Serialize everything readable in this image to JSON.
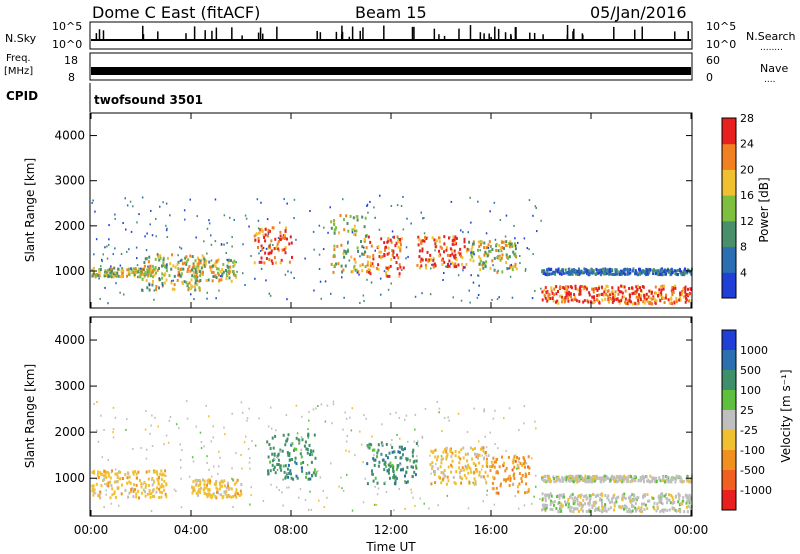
{
  "header": {
    "radar_title": "Dome C East (fitACF)",
    "beam": "Beam 15",
    "date": "05/Jan/2016"
  },
  "strip": {
    "nsky_label": "N.Sky",
    "nsearch_label": "N.Search",
    "nsearch_dots": "........",
    "sky_ticks": [
      "10^5",
      "10^0"
    ],
    "freq_label_line1": "Freq.",
    "freq_label_line2": "[MHz]",
    "freq_ticks": [
      "18",
      "8"
    ],
    "nave_label": "Nave",
    "nave_dots": "....",
    "nave_ticks": [
      "60",
      "0"
    ],
    "cpid_label": "CPID",
    "cpid_value": "twofsound 3501"
  },
  "chart_data": [
    {
      "type": "heatmap",
      "title": "",
      "ylabel": "Slant Range [km]",
      "xlabel": "",
      "ylim": [
        180,
        4500
      ],
      "yticks": [
        "1000",
        "2000",
        "3000",
        "4000"
      ],
      "xlim": [
        "00:00",
        "24:00"
      ],
      "colorbar": {
        "label": "Power [dB]",
        "ticks": [
          "4",
          "8",
          "12",
          "16",
          "20",
          "24",
          "28"
        ],
        "colors": [
          "#1f3fd6",
          "#2b6fb3",
          "#4a8f6b",
          "#7fbf3f",
          "#f0c030",
          "#f08020",
          "#e82020"
        ]
      },
      "regions": [
        {
          "t": [
            0.0,
            2.5
          ],
          "range": [
            900,
            1100
          ],
          "level": "medium"
        },
        {
          "t": [
            2.0,
            4.5
          ],
          "range": [
            600,
            1400
          ],
          "level": "medium"
        },
        {
          "t": [
            4.0,
            5.8
          ],
          "range": [
            800,
            1300
          ],
          "level": "medium"
        },
        {
          "t": [
            6.5,
            8.0
          ],
          "range": [
            1200,
            2000
          ],
          "level": "high"
        },
        {
          "t": [
            9.5,
            11.0
          ],
          "range": [
            1000,
            2300
          ],
          "level": "medium"
        },
        {
          "t": [
            11.0,
            12.5
          ],
          "range": [
            900,
            1800
          ],
          "level": "high"
        },
        {
          "t": [
            13.0,
            15.0
          ],
          "range": [
            1100,
            1800
          ],
          "level": "high"
        },
        {
          "t": [
            15.0,
            17.0
          ],
          "range": [
            1000,
            1700
          ],
          "level": "medium"
        },
        {
          "t": [
            18.0,
            24.0
          ],
          "range": [
            300,
            700
          ],
          "level": "high"
        },
        {
          "t": [
            18.0,
            24.0
          ],
          "range": [
            950,
            1080
          ],
          "level": "low"
        }
      ]
    },
    {
      "type": "heatmap",
      "title": "",
      "ylabel": "Slant Range [km]",
      "xlabel": "Time UT",
      "ylim": [
        180,
        4500
      ],
      "yticks": [
        "1000",
        "2000",
        "3000",
        "4000"
      ],
      "xticks": [
        "00:00",
        "04:00",
        "08:00",
        "12:00",
        "16:00",
        "20:00",
        "00:00"
      ],
      "colorbar": {
        "label": "Velocity [m s⁻¹]",
        "ticks": [
          "1000",
          "500",
          "100",
          "25",
          "-25",
          "-100",
          "-500",
          "-1000"
        ],
        "colors": [
          "#1f3fd6",
          "#2a6fb0",
          "#3f8f6a",
          "#5fc040",
          "#bfbfbf",
          "#f0c030",
          "#f09020",
          "#f06020",
          "#e82020"
        ]
      },
      "regions": [
        {
          "t": [
            0.0,
            3.0
          ],
          "range": [
            600,
            1200
          ],
          "velocity": "-100"
        },
        {
          "t": [
            4.0,
            6.0
          ],
          "range": [
            600,
            1000
          ],
          "velocity": "-100"
        },
        {
          "t": [
            7.0,
            9.0
          ],
          "range": [
            1000,
            2000
          ],
          "velocity": "100"
        },
        {
          "t": [
            11.0,
            13.0
          ],
          "range": [
            900,
            1800
          ],
          "velocity": "100"
        },
        {
          "t": [
            13.5,
            16.0
          ],
          "range": [
            900,
            1700
          ],
          "velocity": "-100"
        },
        {
          "t": [
            16.0,
            17.5
          ],
          "range": [
            700,
            1500
          ],
          "velocity": "-500"
        },
        {
          "t": [
            18.0,
            24.0
          ],
          "range": [
            300,
            700
          ],
          "velocity": "25"
        },
        {
          "t": [
            18.0,
            24.0
          ],
          "range": [
            950,
            1080
          ],
          "velocity": "25"
        }
      ]
    }
  ]
}
